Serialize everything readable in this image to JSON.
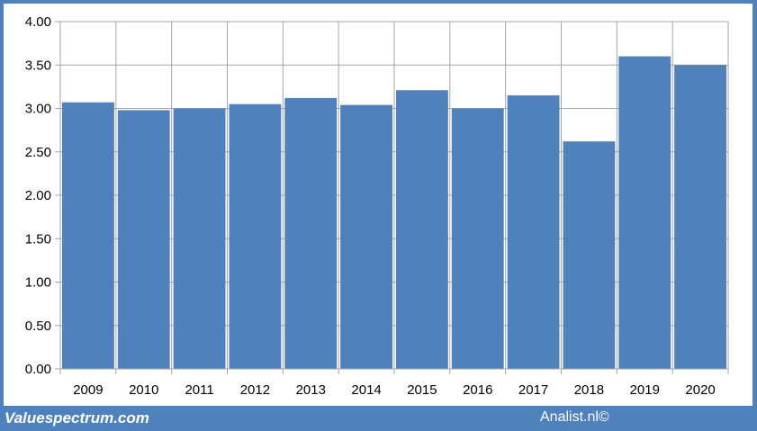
{
  "chart_data": {
    "type": "bar",
    "categories": [
      "2009",
      "2010",
      "2011",
      "2012",
      "2013",
      "2014",
      "2015",
      "2016",
      "2017",
      "2018",
      "2019",
      "2020"
    ],
    "values": [
      3.07,
      2.98,
      3.0,
      3.05,
      3.12,
      3.04,
      3.21,
      3.0,
      3.15,
      2.62,
      3.6,
      3.5
    ],
    "yticks": [
      "0.00",
      "0.50",
      "1.00",
      "1.50",
      "2.00",
      "2.50",
      "3.00",
      "3.50",
      "4.00"
    ],
    "ylim": [
      0,
      4
    ],
    "grid": "vertical and horizontal",
    "bar_color": "#4f81bd",
    "title": "",
    "xlabel": "",
    "ylabel": ""
  },
  "footer": {
    "brand": "Valuespectrum.com",
    "credit": "Analist.nl©"
  },
  "colors": {
    "background": "#4f81bd",
    "grid": "#a6a6a6"
  }
}
